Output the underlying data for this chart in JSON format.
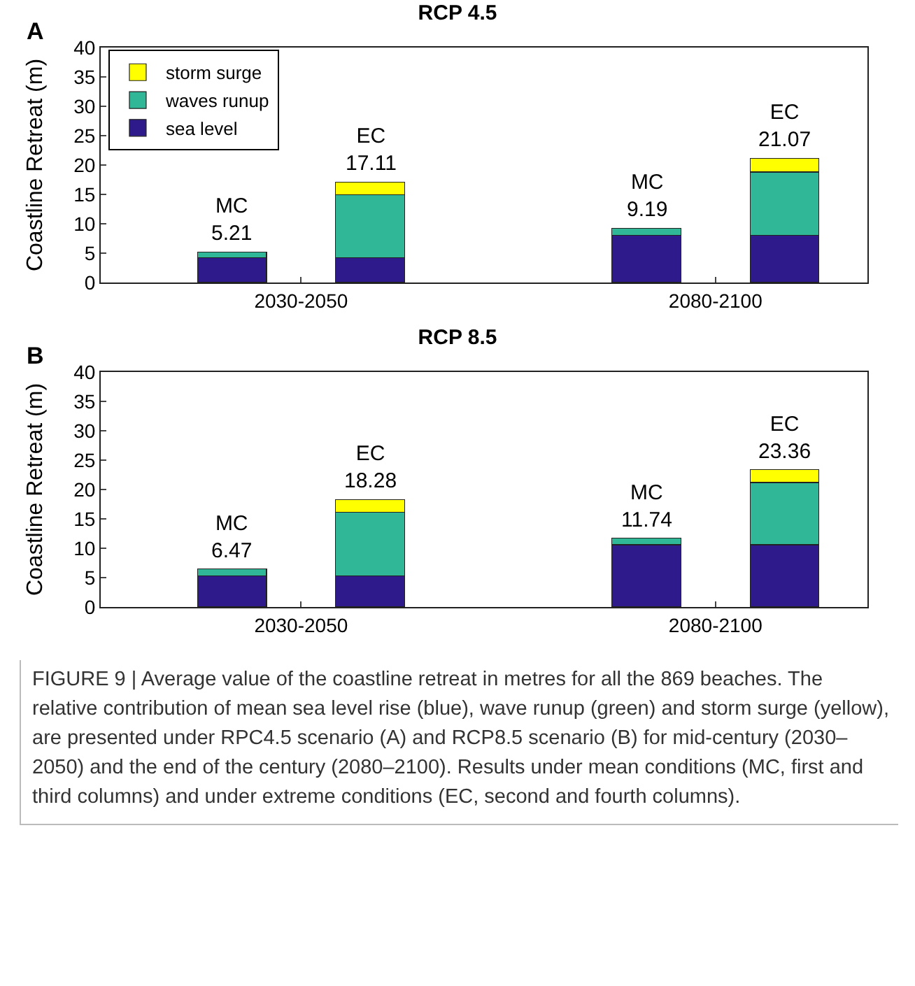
{
  "chart_data": [
    {
      "type": "bar",
      "stacked": true,
      "title": "RCP 4.5",
      "ylabel": "Coastline Retreat (m)",
      "categories": [
        null,
        "2030-2050",
        null,
        null,
        null,
        null,
        null,
        "2080-2100",
        null
      ],
      "ylim": [
        0,
        40
      ],
      "yticks": [
        0,
        5,
        10,
        15,
        20,
        25,
        30,
        35,
        40
      ],
      "grid": false,
      "legend": "top left",
      "series": [
        {
          "name": "sea level",
          "color": "#2e1a8a",
          "values": [
            4.2,
            null,
            4.2,
            null,
            null,
            null,
            8.0,
            null,
            8.0
          ]
        },
        {
          "name": "waves runup",
          "color": "#2fb797",
          "values": [
            1.0,
            null,
            10.7,
            null,
            null,
            null,
            1.2,
            null,
            10.8
          ]
        },
        {
          "name": "storm surge",
          "color": "#ffff00",
          "values": [
            null,
            null,
            2.2,
            null,
            null,
            null,
            null,
            null,
            2.3
          ]
        }
      ],
      "totals": [
        "MC\n5.21",
        null,
        "EC\n17.11",
        null,
        null,
        null,
        "MC\n9.19",
        null,
        "EC\n21.07"
      ],
      "annotations": [
        "A"
      ]
    },
    {
      "type": "bar",
      "stacked": true,
      "title": "RCP 8.5",
      "ylabel": "Coastline Retreat (m)",
      "categories": [
        null,
        "2030-2050",
        null,
        null,
        null,
        null,
        null,
        "2080-2100",
        null
      ],
      "ylim": [
        0,
        40
      ],
      "yticks": [
        0,
        5,
        10,
        15,
        20,
        25,
        30,
        35,
        40
      ],
      "grid": false,
      "legend": false,
      "series": [
        {
          "color": "#2e1a8a",
          "values": [
            5.3,
            null,
            5.3,
            null,
            null,
            null,
            10.6,
            null,
            10.6
          ]
        },
        {
          "color": "#2fb797",
          "values": [
            1.2,
            null,
            10.8,
            null,
            null,
            null,
            1.1,
            null,
            10.6
          ]
        },
        {
          "color": "#ffff00",
          "values": [
            null,
            null,
            2.2,
            null,
            null,
            null,
            null,
            null,
            2.2
          ]
        }
      ],
      "totals": [
        "MC\n6.47",
        null,
        "EC\n18.28",
        null,
        null,
        null,
        "MC\n11.74",
        null,
        "EC\n23.36"
      ],
      "annotations": [
        "B",
        "FIGURE 9 | Average value of the coastline retreat in metres for all the 869 beaches. The relative contribution of mean sea level rise (blue), wave runup (green) and storm surge (yellow), are presented under RPC4.5 scenario (A) and RCP8.5 scenario (B) for mid-century (2030–2050) and the end of the century (2080–2100). Results under mean conditions (MC, first and third columns) and under extreme conditions (EC, second and fourth columns)."
      ]
    }
  ]
}
